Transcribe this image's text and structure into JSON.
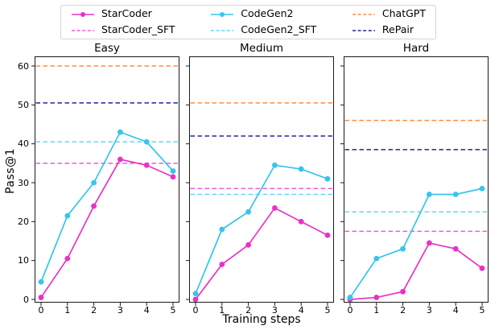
{
  "figure": {
    "background": "#ffffff",
    "spine_color": "#1a1a1a"
  },
  "legend": {
    "entries": [
      {
        "label": "StarCoder",
        "color": "#e733c4",
        "style": "solid-marker"
      },
      {
        "label": "StarCoder_SFT",
        "color": "#f356de",
        "style": "dashed"
      },
      {
        "label": "CodeGen2",
        "color": "#35c5ee",
        "style": "solid-marker"
      },
      {
        "label": "CodeGen2_SFT",
        "color": "#64d7f4",
        "style": "dashed"
      },
      {
        "label": "ChatGPT",
        "color": "#ff8c42",
        "style": "dashed"
      },
      {
        "label": "RePair",
        "color": "#23239b",
        "style": "dashed"
      }
    ]
  },
  "chart_data": {
    "type": "line",
    "x": [
      0,
      1,
      2,
      3,
      4,
      5
    ],
    "xlabel": "Training steps",
    "ylabel": "Pass@1",
    "ylim": [
      -1,
      62.5
    ],
    "yticks": [
      0,
      10,
      20,
      30,
      40,
      50,
      60
    ],
    "grid": false,
    "legend_position": "top-center",
    "subplots": [
      {
        "title": "Easy",
        "series": [
          {
            "name": "StarCoder",
            "values": [
              0.5,
              10.5,
              24,
              36,
              34.5,
              31.5
            ]
          },
          {
            "name": "CodeGen2",
            "values": [
              4.5,
              21.5,
              30,
              43,
              40.5,
              33
            ]
          }
        ],
        "hlines": [
          {
            "name": "ChatGPT",
            "value": 60
          },
          {
            "name": "RePair",
            "value": 50.5
          },
          {
            "name": "CodeGen2_SFT",
            "value": 40.5
          },
          {
            "name": "StarCoder_SFT",
            "value": 35
          }
        ]
      },
      {
        "title": "Medium",
        "series": [
          {
            "name": "StarCoder",
            "values": [
              0,
              9,
              14,
              23.5,
              20,
              16.5
            ]
          },
          {
            "name": "CodeGen2",
            "values": [
              1.5,
              18,
              22.5,
              34.5,
              33.5,
              31
            ]
          }
        ],
        "hlines": [
          {
            "name": "ChatGPT",
            "value": 50.5
          },
          {
            "name": "RePair",
            "value": 42
          },
          {
            "name": "StarCoder_SFT",
            "value": 28.5
          },
          {
            "name": "CodeGen2_SFT",
            "value": 27
          }
        ]
      },
      {
        "title": "Hard",
        "series": [
          {
            "name": "StarCoder",
            "values": [
              0,
              0.5,
              2,
              14.5,
              13,
              8
            ]
          },
          {
            "name": "CodeGen2",
            "values": [
              0.5,
              10.5,
              13,
              27,
              27,
              28.5
            ]
          }
        ],
        "hlines": [
          {
            "name": "ChatGPT",
            "value": 46
          },
          {
            "name": "RePair",
            "value": 38.5
          },
          {
            "name": "CodeGen2_SFT",
            "value": 22.5
          },
          {
            "name": "StarCoder_SFT",
            "value": 17.5
          }
        ]
      }
    ]
  }
}
